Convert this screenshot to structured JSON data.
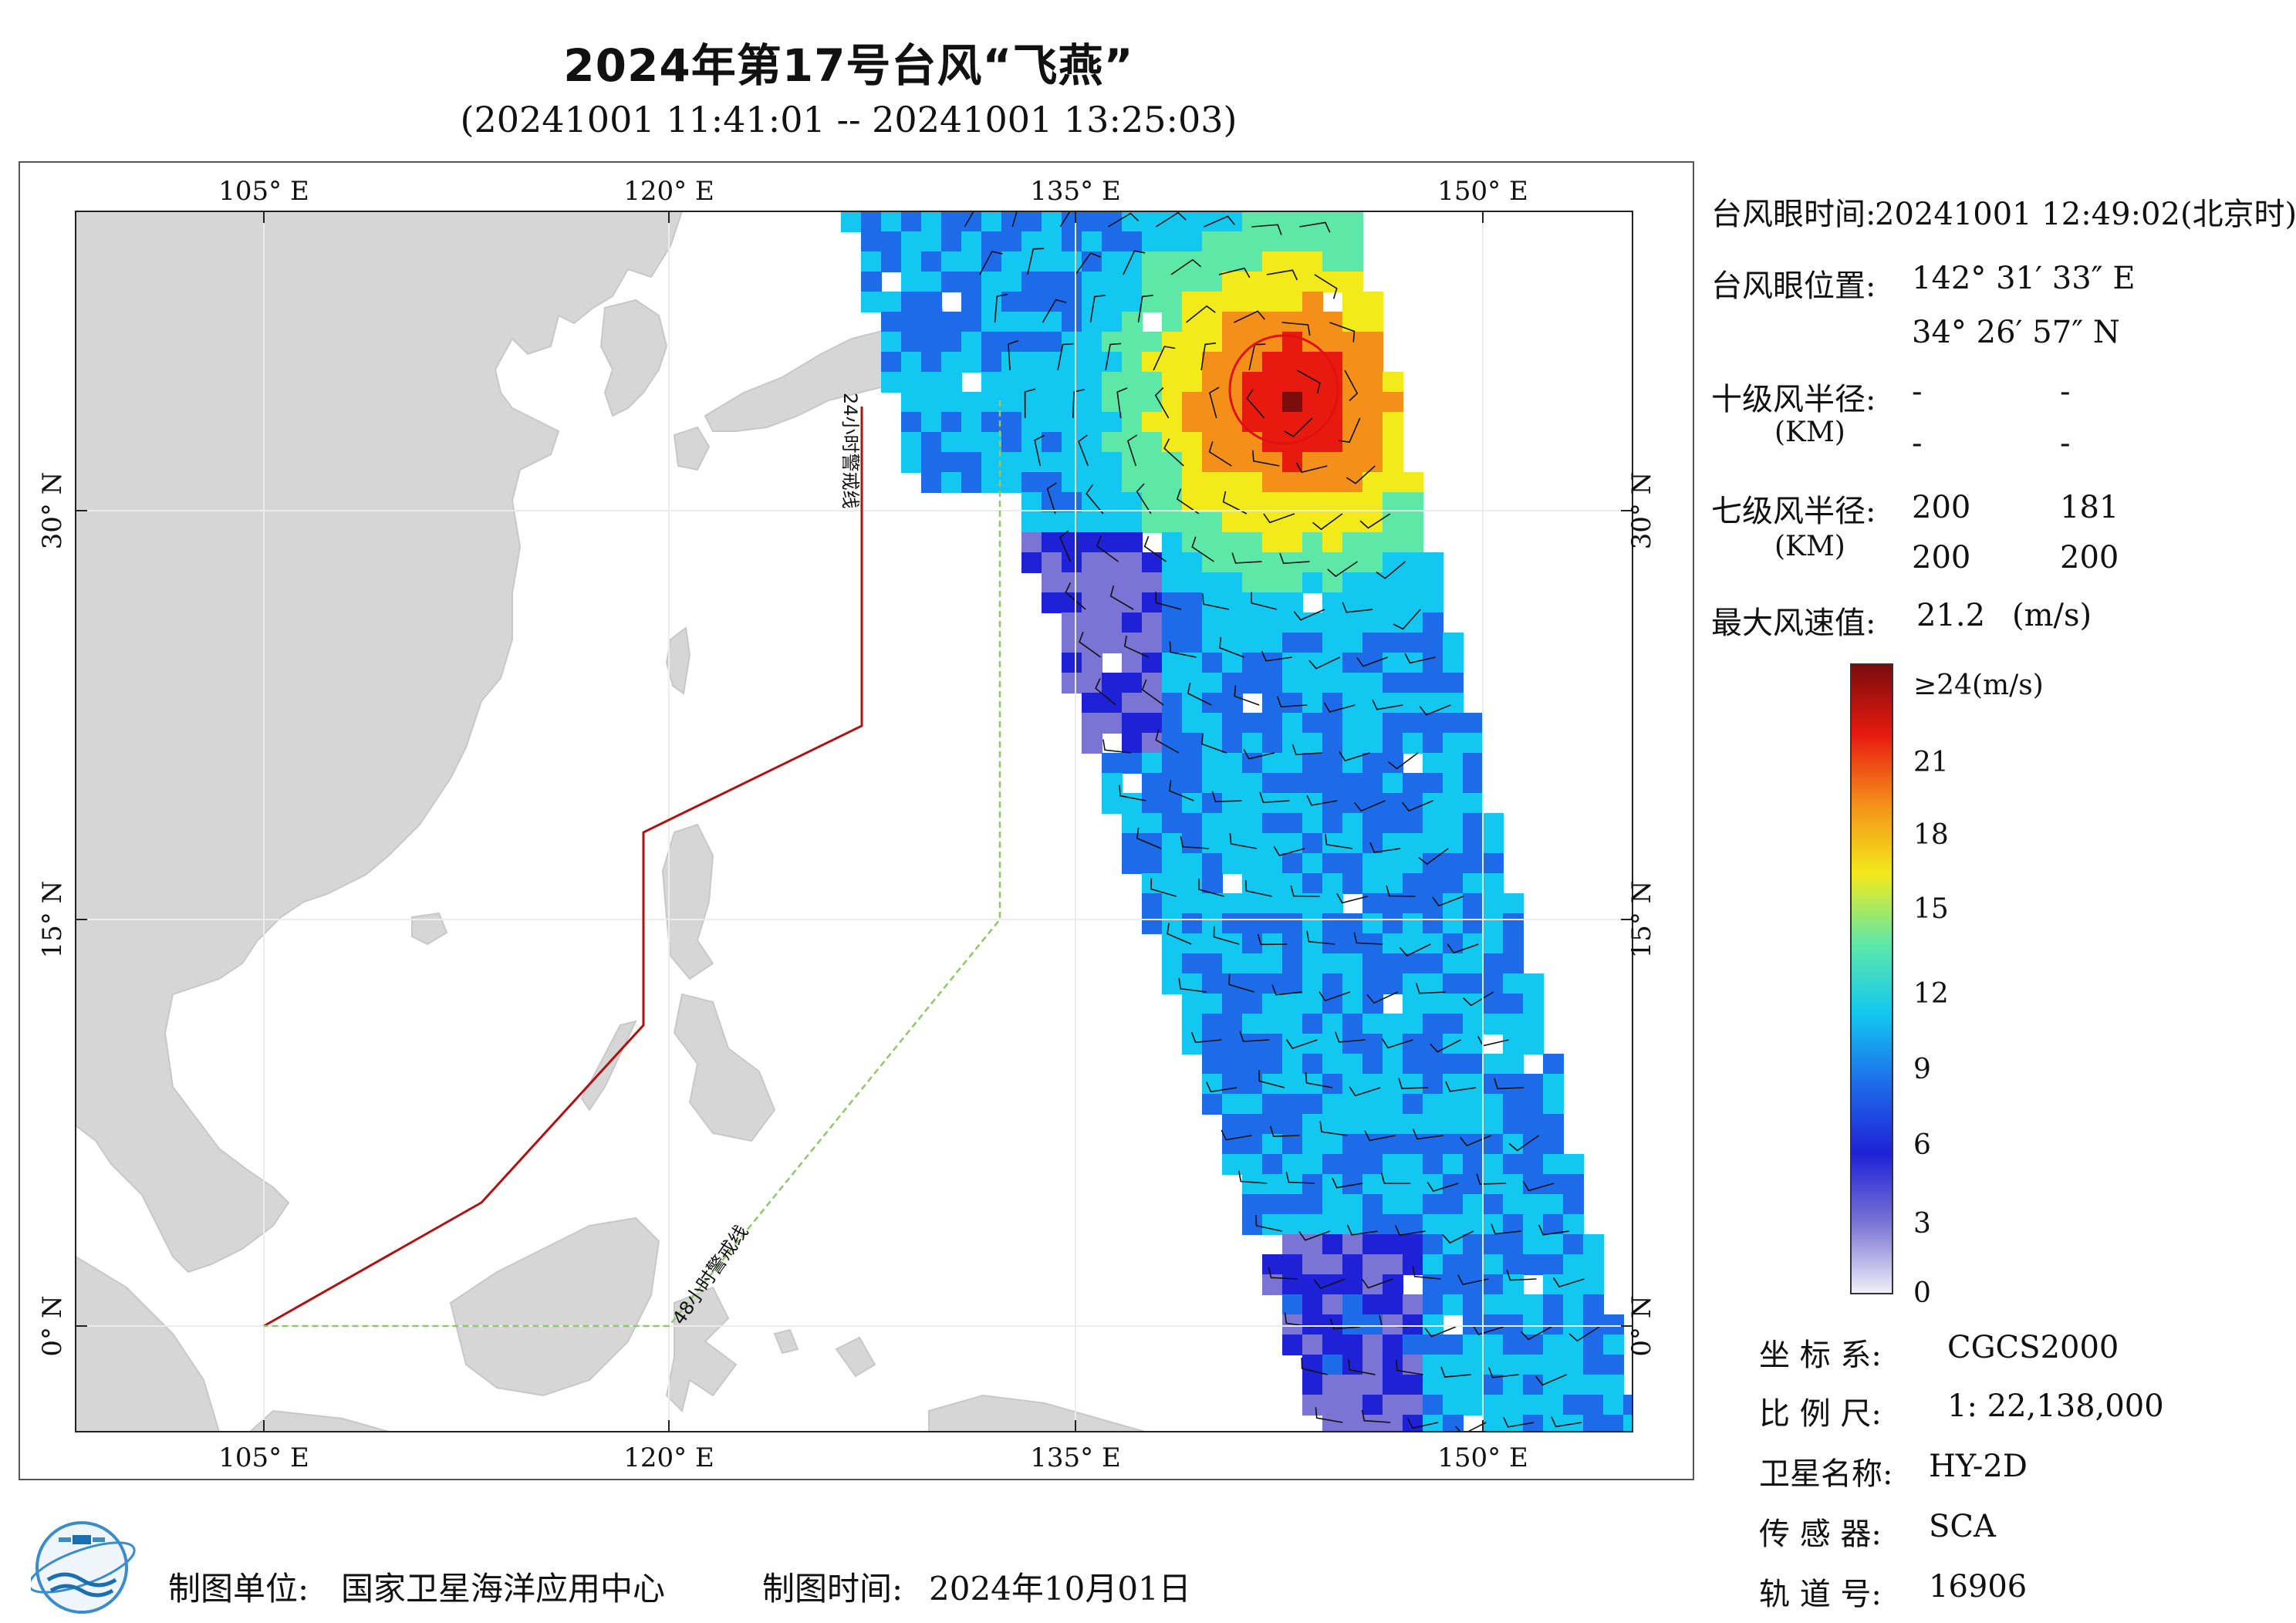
{
  "title": "2024年第17号台风“飞燕”",
  "subtitle": "(20241001 11:41:01 -- 20241001 13:25:03)",
  "map": {
    "top_lon_labels": [
      "105° E",
      "120° E",
      "135° E",
      "150° E"
    ],
    "bottom_lon_labels": [
      "105° E",
      "120° E",
      "135° E",
      "150° E"
    ],
    "left_lat_labels": [
      "30° N",
      "15° N",
      "0° N"
    ],
    "right_lat_labels": [
      "30° N",
      "15° N",
      "0° N"
    ],
    "line_24h_label": "24小时警戒线",
    "line_48h_label": "48小时警戒线",
    "colors": {
      "land": "#d6d6d6",
      "sea": "#ffffff",
      "line_24h": "#b01212",
      "line_48h": "#8fc86a",
      "typhoon_circle": "#e01010"
    }
  },
  "info_panel": {
    "eye_time_label": "台风眼时间:",
    "eye_time_value": "20241001 12:49:02(北京时)",
    "eye_pos_label": "台风眼位置:",
    "eye_lon": "142° 31′ 33″ E",
    "eye_lat": "34° 26′ 57″ N",
    "r10_label": "十级风半径:",
    "r10_unit": "(KM)",
    "r10_values": [
      "-",
      "-",
      "-",
      "-"
    ],
    "r7_label": "七级风半径:",
    "r7_unit": "(KM)",
    "r7_values": [
      "200",
      "181",
      "200",
      "200"
    ],
    "max_wind_label": "最大风速值:",
    "max_wind_value": "21.2",
    "max_wind_unit": "(m/s)"
  },
  "colorbar": {
    "labels": [
      "≥24(m/s)",
      "21",
      "18",
      "15",
      "12",
      "9",
      "6",
      "3",
      "0"
    ],
    "colors": [
      "#f0eef8",
      "#7a74d4",
      "#1f21d6",
      "#1e6bea",
      "#12c8f0",
      "#5ee8a8",
      "#f2ea1a",
      "#f4901a",
      "#e81a10",
      "#7a0c0c"
    ]
  },
  "meta": {
    "crs_label": "坐 标 系:",
    "crs_value": "CGCS2000",
    "scale_label": "比 例 尺:",
    "scale_value": "1: 22,138,000",
    "satellite_label": "卫星名称:",
    "satellite_value": "HY-2D",
    "sensor_label": "传 感 器:",
    "sensor_value": "SCA",
    "orbit_label": "轨 道 号:",
    "orbit_value": "16906"
  },
  "footer": {
    "unit_label": "制图单位:",
    "unit_value": "国家卫星海洋应用中心",
    "time_label": "制图时间:",
    "time_value": "2024年10月01日"
  }
}
